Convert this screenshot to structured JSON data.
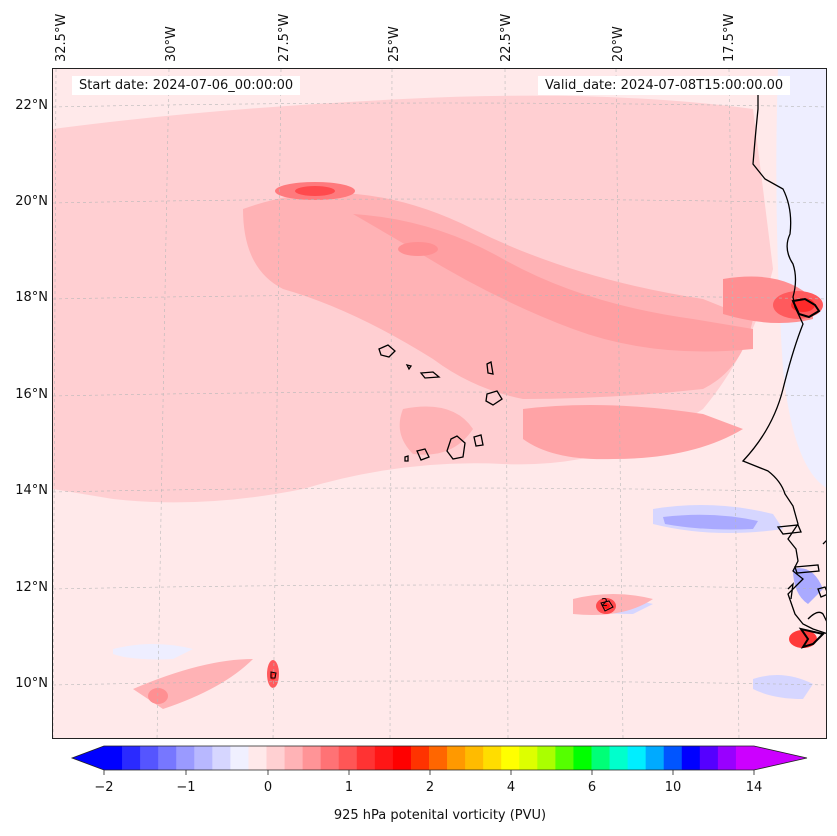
{
  "map": {
    "start_label": "Start date: 2024-07-06_00:00:00",
    "valid_label": "Valid_date: 2024-07-08T15:00:00.00",
    "lon_labels": [
      "32.5°W",
      "30°W",
      "27.5°W",
      "25°W",
      "22.5°W",
      "20°W",
      "17.5°W"
    ],
    "lat_labels": [
      "22°N",
      "20°N",
      "18°N",
      "16°N",
      "14°N",
      "12°N",
      "10°N"
    ],
    "contour_label": "2",
    "colors": {
      "background": "#ffe9ea",
      "light_pink": "#ffcfd2",
      "pink": "#ffb2b5",
      "salmon": "#ff8f92",
      "red": "#ff3a3a",
      "light_blue": "#eeeeff",
      "blue": "#aaaaff",
      "coastline": "#000000"
    }
  },
  "colorbar": {
    "title": "925 hPa potenital vorticity (PVU)",
    "tick_labels": [
      "−2",
      "−1",
      "0",
      "1",
      "2",
      "4",
      "6",
      "10",
      "14"
    ],
    "colors": [
      "#0000ff",
      "#2a2aff",
      "#5555ff",
      "#7777ff",
      "#9a9aff",
      "#b8b8ff",
      "#d6d6ff",
      "#f0f0ff",
      "#ffe9ea",
      "#ffd0d2",
      "#ffb3b6",
      "#ff9497",
      "#ff7275",
      "#ff5656",
      "#ff3333",
      "#ff1616",
      "#ff0000",
      "#ff3300",
      "#ff6600",
      "#ff9900",
      "#ffbb00",
      "#ffdd00",
      "#ffff00",
      "#ddff00",
      "#aaff00",
      "#55ff00",
      "#00ff00",
      "#00ff77",
      "#00ffcc",
      "#00eeff",
      "#00aaff",
      "#0055ff",
      "#0000ff",
      "#5500ff",
      "#9900ff",
      "#cc00ff"
    ]
  }
}
